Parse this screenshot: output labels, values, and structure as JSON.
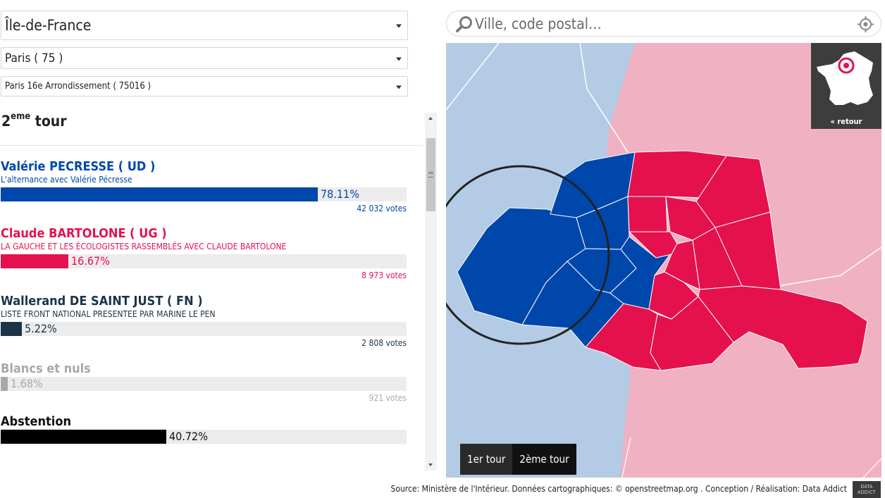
{
  "selects": {
    "region": "Île-de-France",
    "departement": "Paris ( 75 )",
    "commune": "Paris 16e Arrondissement ( 75016 )"
  },
  "results": {
    "heading_main": "2",
    "heading_sup": "eme",
    "heading_rest": " tour",
    "candidates": [
      {
        "name": "Valérie PECRESSE ( UD )",
        "list": "L'alternance avec Valérie Pécresse",
        "percent": 78.11,
        "percent_label": "78.11%",
        "votes": "42 032 votes",
        "color": "#0047ab"
      },
      {
        "name": "Claude BARTOLONE ( UG )",
        "list": "LA GAUCHE ET LES ÉCOLOGISTES RASSEMBLÉS AVEC CLAUDE BARTOLONE",
        "percent": 16.67,
        "percent_label": "16.67%",
        "votes": "8 973 votes",
        "color": "#e5114e"
      },
      {
        "name": "Wallerand DE SAINT JUST ( FN )",
        "list": "LISTE FRONT NATIONAL PRESENTEE PAR MARINE LE PEN",
        "percent": 5.22,
        "percent_label": "5.22%",
        "votes": "2 808 votes",
        "color": "#1b3447"
      }
    ],
    "blancs": {
      "name": "Blancs et nuls",
      "percent": 1.68,
      "percent_label": "1.68%",
      "votes": "921 votes",
      "color": "#a8a8a8"
    },
    "abstention": {
      "name": "Abstention",
      "percent": 40.72,
      "percent_label": "40.72%",
      "color": "#000000"
    }
  },
  "search": {
    "placeholder": "Ville, code postal…",
    "icon": "search-icon",
    "locate_icon": "crosshair-icon"
  },
  "map": {
    "inset_back": "« retour",
    "tour_buttons": [
      "1er tour",
      "2ème tour"
    ],
    "active_tour": "2ème tour",
    "colors": {
      "ud_area": "#b3cbe4",
      "ug_area": "#f0b1c3",
      "ud": "#0047ab",
      "ug": "#e5114e"
    }
  },
  "footer": {
    "text": "Source: Ministère de l'Intérieur. Données cartographiques: © openstreetmap.org . Conception / Réalisation: Data Addict",
    "logo": "DATA ADDICT"
  }
}
